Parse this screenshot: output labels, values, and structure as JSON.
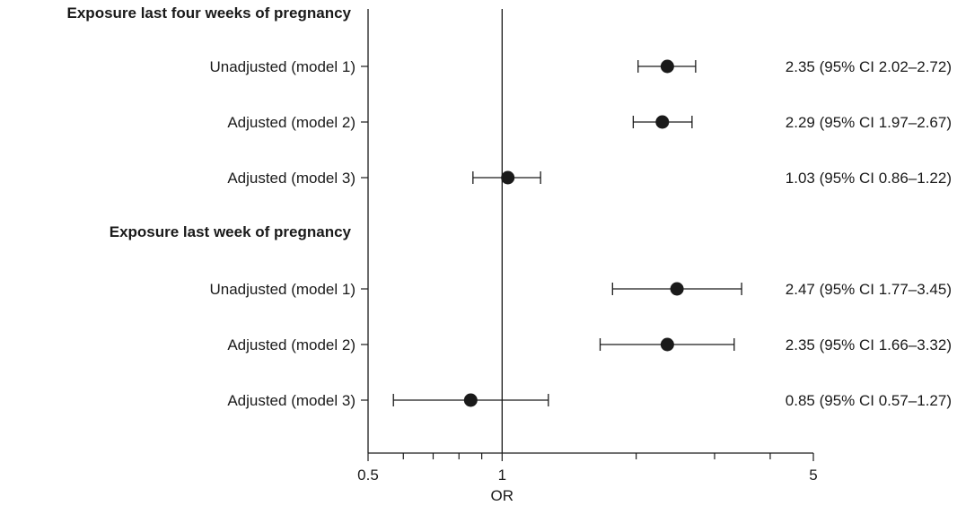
{
  "chart_data": {
    "type": "forest",
    "xlabel": "OR",
    "x_scale": "log",
    "xlim": [
      0.5,
      5
    ],
    "x_tick_labels": [
      {
        "value": 0.5,
        "label": "0.5"
      },
      {
        "value": 1,
        "label": "1"
      },
      {
        "value": 5,
        "label": "5"
      }
    ],
    "x_minor_ticks": [
      0.6,
      0.7,
      0.8,
      0.9,
      2,
      3,
      4
    ],
    "reference_line": 1,
    "groups": [
      {
        "title": "Exposure last four weeks of pregnancy",
        "rows": [
          {
            "label": "Unadjusted (model 1)",
            "or": 2.35,
            "lo": 2.02,
            "hi": 2.72,
            "annotation": "2.35 (95% CI 2.02–2.72)"
          },
          {
            "label": "Adjusted (model 2)",
            "or": 2.29,
            "lo": 1.97,
            "hi": 2.67,
            "annotation": "2.29 (95% CI 1.97–2.67)"
          },
          {
            "label": "Adjusted (model 3)",
            "or": 1.03,
            "lo": 0.86,
            "hi": 1.22,
            "annotation": "1.03 (95% CI 0.86–1.22)"
          }
        ]
      },
      {
        "title": "Exposure last week of pregnancy",
        "rows": [
          {
            "label": "Unadjusted (model 1)",
            "or": 2.47,
            "lo": 1.77,
            "hi": 3.45,
            "annotation": "2.47 (95% CI 1.77–3.45)"
          },
          {
            "label": "Adjusted (model 2)",
            "or": 2.35,
            "lo": 1.66,
            "hi": 3.32,
            "annotation": "2.35 (95% CI 1.66–3.32)"
          },
          {
            "label": "Adjusted (model 3)",
            "or": 0.85,
            "lo": 0.57,
            "hi": 1.27,
            "annotation": "0.85 (95% CI 0.57–1.27)"
          }
        ]
      }
    ]
  }
}
